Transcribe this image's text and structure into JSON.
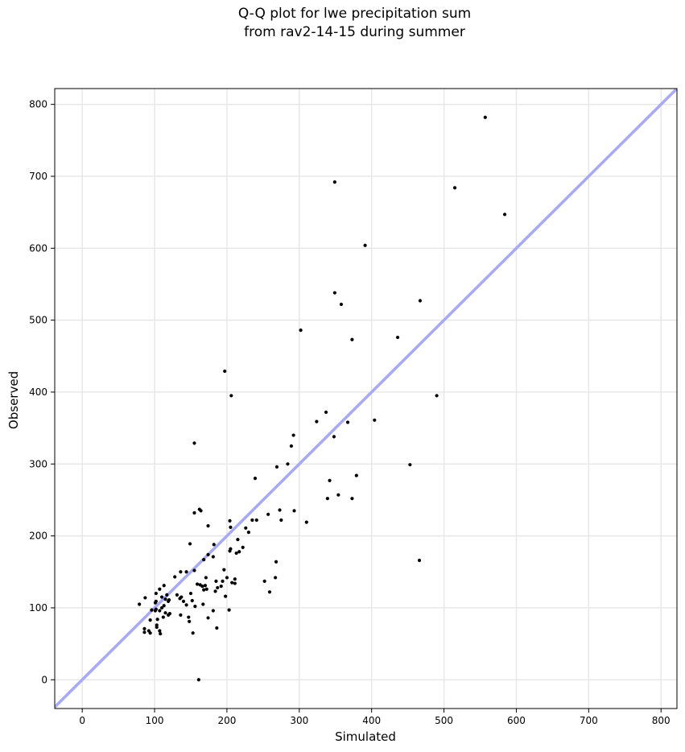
{
  "chart_data": {
    "type": "scatter",
    "title_line1": "Q-Q plot for lwe precipitation sum",
    "title_line2": "from rav2-14-15 during summer",
    "xlabel": "Simulated",
    "ylabel": "Observed",
    "xlim": [
      -38,
      822
    ],
    "ylim": [
      -40,
      822
    ],
    "xticks": [
      0,
      100,
      200,
      300,
      400,
      500,
      600,
      700,
      800
    ],
    "yticks": [
      0,
      100,
      200,
      300,
      400,
      500,
      600,
      700,
      800
    ],
    "grid": true,
    "reference_line": {
      "from": [
        -38,
        -38
      ],
      "to": [
        822,
        822
      ],
      "color": "#a8aaf5"
    },
    "marker_color": "#000000",
    "points": [
      [
        557,
        782
      ],
      [
        349,
        692
      ],
      [
        515,
        684
      ],
      [
        584,
        647
      ],
      [
        391,
        604
      ],
      [
        349,
        538
      ],
      [
        467,
        527
      ],
      [
        358,
        522
      ],
      [
        302,
        486
      ],
      [
        436,
        476
      ],
      [
        373,
        473
      ],
      [
        197,
        429
      ],
      [
        206,
        395
      ],
      [
        490,
        395
      ],
      [
        337,
        372
      ],
      [
        324,
        359
      ],
      [
        367,
        358
      ],
      [
        404,
        361
      ],
      [
        292,
        340
      ],
      [
        348,
        338
      ],
      [
        155,
        329
      ],
      [
        289,
        325
      ],
      [
        269,
        296
      ],
      [
        284,
        300
      ],
      [
        453,
        299
      ],
      [
        379,
        284
      ],
      [
        239,
        280
      ],
      [
        342,
        277
      ],
      [
        354,
        257
      ],
      [
        339,
        252
      ],
      [
        373,
        252
      ],
      [
        162,
        237
      ],
      [
        164,
        235
      ],
      [
        155,
        232
      ],
      [
        273,
        236
      ],
      [
        293,
        235
      ],
      [
        257,
        230
      ],
      [
        275,
        222
      ],
      [
        310,
        219
      ],
      [
        204,
        221
      ],
      [
        235,
        222
      ],
      [
        241,
        222
      ],
      [
        205,
        212
      ],
      [
        174,
        214
      ],
      [
        226,
        211
      ],
      [
        230,
        205
      ],
      [
        215,
        195
      ],
      [
        222,
        184
      ],
      [
        205,
        182
      ],
      [
        204,
        179
      ],
      [
        217,
        178
      ],
      [
        213,
        176
      ],
      [
        182,
        188
      ],
      [
        149,
        189
      ],
      [
        174,
        174
      ],
      [
        181,
        171
      ],
      [
        168,
        167
      ],
      [
        466,
        166
      ],
      [
        268,
        164
      ],
      [
        155,
        152
      ],
      [
        144,
        150
      ],
      [
        196,
        153
      ],
      [
        136,
        150
      ],
      [
        128,
        143
      ],
      [
        166,
        130
      ],
      [
        171,
        142
      ],
      [
        200,
        142
      ],
      [
        211,
        140
      ],
      [
        267,
        142
      ],
      [
        252,
        137
      ],
      [
        185,
        137
      ],
      [
        194,
        137
      ],
      [
        211,
        134
      ],
      [
        207,
        135
      ],
      [
        159,
        133
      ],
      [
        163,
        132
      ],
      [
        170,
        131
      ],
      [
        192,
        130
      ],
      [
        187,
        128
      ],
      [
        172,
        126
      ],
      [
        168,
        125
      ],
      [
        113,
        131
      ],
      [
        107,
        126
      ],
      [
        102,
        120
      ],
      [
        184,
        123
      ],
      [
        131,
        118
      ],
      [
        117,
        118
      ],
      [
        150,
        120
      ],
      [
        259,
        122
      ],
      [
        198,
        116
      ],
      [
        110,
        115
      ],
      [
        137,
        115
      ],
      [
        135,
        113
      ],
      [
        115,
        112
      ],
      [
        120,
        111
      ],
      [
        119,
        109
      ],
      [
        102,
        109
      ],
      [
        87,
        114
      ],
      [
        140,
        109
      ],
      [
        152,
        110
      ],
      [
        101,
        107
      ],
      [
        79,
        105
      ],
      [
        167,
        105
      ],
      [
        156,
        102
      ],
      [
        113,
        103
      ],
      [
        144,
        104
      ],
      [
        110,
        100
      ],
      [
        102,
        98
      ],
      [
        101,
        96
      ],
      [
        96,
        97
      ],
      [
        107,
        96
      ],
      [
        115,
        93
      ],
      [
        203,
        97
      ],
      [
        181,
        96
      ],
      [
        121,
        92
      ],
      [
        119,
        90
      ],
      [
        136,
        90
      ],
      [
        112,
        87
      ],
      [
        147,
        87
      ],
      [
        174,
        86
      ],
      [
        104,
        84
      ],
      [
        94,
        83
      ],
      [
        148,
        81
      ],
      [
        103,
        76
      ],
      [
        103,
        73
      ],
      [
        86,
        71
      ],
      [
        92,
        68
      ],
      [
        94,
        65
      ],
      [
        86,
        66
      ],
      [
        107,
        68
      ],
      [
        108,
        64
      ],
      [
        186,
        72
      ],
      [
        153,
        65
      ],
      [
        161,
        0
      ]
    ]
  }
}
